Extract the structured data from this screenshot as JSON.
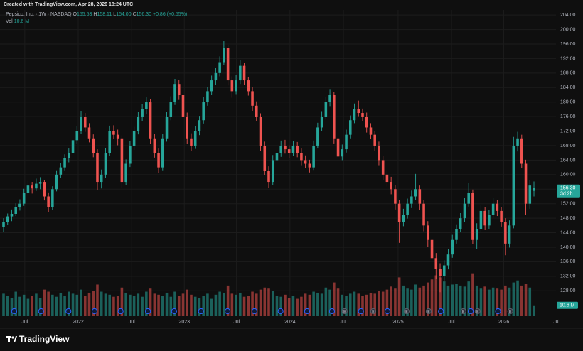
{
  "header": "Created with TradingView.com, Apr 28, 2026 18:24 UTC",
  "brand": "TradingView",
  "chart_data": {
    "type": "candlestick",
    "legend": {
      "symbol": "Pepsico, Inc. · 1W · NASDAQ",
      "fields": [
        {
          "label": "O",
          "value": "155.53"
        },
        {
          "label": "H",
          "value": "158.11"
        },
        {
          "label": "L",
          "value": "154.00"
        },
        {
          "label": "C",
          "value": "156.30"
        }
      ],
      "change": "+0.86 (+0.55%)",
      "volume_label": "Vol",
      "volume_value": "10.6 M"
    },
    "countdown": "3d 2h",
    "up_color": "#26a69a",
    "down_color": "#ef5350",
    "grid": true,
    "xlim": [
      -0.87,
      135.4
    ],
    "xticks": [
      {
        "value": 5.2,
        "label": "Jul"
      },
      {
        "value": 18.3,
        "label": "2022"
      },
      {
        "value": 31.4,
        "label": "Jul"
      },
      {
        "value": 44.3,
        "label": "2023"
      },
      {
        "value": 57.1,
        "label": "Jul"
      },
      {
        "value": 70.2,
        "label": "2024"
      },
      {
        "value": 83.3,
        "label": "Jul"
      },
      {
        "value": 96.7,
        "label": "2025"
      },
      {
        "value": 109.8,
        "label": "Jul"
      },
      {
        "value": 122.6,
        "label": "2026"
      },
      {
        "value": 135.5,
        "label": "Jul"
      }
    ],
    "ylim": [
      121,
      205.4
    ],
    "yticks": [
      {
        "value": 128,
        "label": "128.00"
      },
      {
        "value": 132,
        "label": "132.00"
      },
      {
        "value": 136,
        "label": "136.00"
      },
      {
        "value": 140,
        "label": "140.00"
      },
      {
        "value": 144,
        "label": "144.00"
      },
      {
        "value": 148,
        "label": "148.00"
      },
      {
        "value": 152,
        "label": "152.00"
      },
      {
        "value": 156,
        "label": "156.00"
      },
      {
        "value": 160,
        "label": "160.00"
      },
      {
        "value": 164,
        "label": "164.00"
      },
      {
        "value": 168,
        "label": "168.00"
      },
      {
        "value": 172,
        "label": "172.00"
      },
      {
        "value": 176,
        "label": "176.00"
      },
      {
        "value": 180,
        "label": "180.00"
      },
      {
        "value": 184,
        "label": "184.00"
      },
      {
        "value": 188,
        "label": "188.00"
      },
      {
        "value": 192,
        "label": "192.00"
      },
      {
        "value": 196,
        "label": "196.00"
      },
      {
        "value": 200,
        "label": "200.00"
      },
      {
        "value": 204,
        "label": "204.00"
      }
    ],
    "vlim": [
      0,
      300
    ],
    "ohlc": [
      [
        145.5,
        148.0,
        144.2,
        147.0
      ],
      [
        147.0,
        149.3,
        146.1,
        148.5
      ],
      [
        148.5,
        150.4,
        147.2,
        149.2
      ],
      [
        149.2,
        152.1,
        148.6,
        151.0
      ],
      [
        151.0,
        153.2,
        150.1,
        152.0
      ],
      [
        152.0,
        156.1,
        151.4,
        155.0
      ],
      [
        155.0,
        158.3,
        154.2,
        157.0
      ],
      [
        157.0,
        158.0,
        154.8,
        156.2
      ],
      [
        156.2,
        158.9,
        155.5,
        157.5
      ],
      [
        157.5,
        159.3,
        156.0,
        158.0
      ],
      [
        158.0,
        158.6,
        152.9,
        154.0
      ],
      [
        154.0,
        155.1,
        149.6,
        151.0
      ],
      [
        151.0,
        156.8,
        150.2,
        156.0
      ],
      [
        156.0,
        161.2,
        155.4,
        160.0
      ],
      [
        160.0,
        163.1,
        159.0,
        162.0
      ],
      [
        162.0,
        165.6,
        161.2,
        164.5
      ],
      [
        164.5,
        167.2,
        163.4,
        166.0
      ],
      [
        166.0,
        170.8,
        165.1,
        169.5
      ],
      [
        169.5,
        173.4,
        168.6,
        172.0
      ],
      [
        172.0,
        177.6,
        171.2,
        176.0
      ],
      [
        176.0,
        177.0,
        171.8,
        173.0
      ],
      [
        173.0,
        174.2,
        168.9,
        170.0
      ],
      [
        170.0,
        171.1,
        164.8,
        166.0
      ],
      [
        166.0,
        167.0,
        155.8,
        158.0
      ],
      [
        158.0,
        161.4,
        156.2,
        160.0
      ],
      [
        160.0,
        167.3,
        159.1,
        166.0
      ],
      [
        166.0,
        173.5,
        165.2,
        172.0
      ],
      [
        172.0,
        173.6,
        169.8,
        171.0
      ],
      [
        171.0,
        172.4,
        168.1,
        170.0
      ],
      [
        170.0,
        170.8,
        156.4,
        158.0
      ],
      [
        158.0,
        164.2,
        157.1,
        163.0
      ],
      [
        163.0,
        169.3,
        162.1,
        168.0
      ],
      [
        168.0,
        173.2,
        166.8,
        172.0
      ],
      [
        172.0,
        177.4,
        171.1,
        176.0
      ],
      [
        176.0,
        179.5,
        174.8,
        178.0
      ],
      [
        178.0,
        181.3,
        176.6,
        180.0
      ],
      [
        180.0,
        180.8,
        168.5,
        170.0
      ],
      [
        170.0,
        171.3,
        164.7,
        166.0
      ],
      [
        166.0,
        167.2,
        160.4,
        162.0
      ],
      [
        162.0,
        171.3,
        161.2,
        170.0
      ],
      [
        170.0,
        177.2,
        169.1,
        176.0
      ],
      [
        176.0,
        181.6,
        175.0,
        180.0
      ],
      [
        180.0,
        186.4,
        179.2,
        185.0
      ],
      [
        185.0,
        186.1,
        180.6,
        182.0
      ],
      [
        182.0,
        183.0,
        174.9,
        176.0
      ],
      [
        176.0,
        177.1,
        168.4,
        170.0
      ],
      [
        170.0,
        171.4,
        166.6,
        168.0
      ],
      [
        168.0,
        173.3,
        167.1,
        172.0
      ],
      [
        172.0,
        176.2,
        170.9,
        175.0
      ],
      [
        175.0,
        181.4,
        174.1,
        180.0
      ],
      [
        180.0,
        184.2,
        179.0,
        183.0
      ],
      [
        183.0,
        187.3,
        182.0,
        186.0
      ],
      [
        186.0,
        189.4,
        184.8,
        188.0
      ],
      [
        188.0,
        192.6,
        187.1,
        191.0
      ],
      [
        191.0,
        196.8,
        190.2,
        195.0
      ],
      [
        195.0,
        195.8,
        184.6,
        186.0
      ],
      [
        186.0,
        187.1,
        181.2,
        183.0
      ],
      [
        183.0,
        187.4,
        182.2,
        186.0
      ],
      [
        186.0,
        191.6,
        185.0,
        190.0
      ],
      [
        190.0,
        190.8,
        184.7,
        186.0
      ],
      [
        186.0,
        187.0,
        181.8,
        183.0
      ],
      [
        183.0,
        184.1,
        177.6,
        179.0
      ],
      [
        179.0,
        180.2,
        174.8,
        176.0
      ],
      [
        176.0,
        176.9,
        166.5,
        168.0
      ],
      [
        168.0,
        169.1,
        159.8,
        161.0
      ],
      [
        161.0,
        162.3,
        156.4,
        158.0
      ],
      [
        158.0,
        165.4,
        157.2,
        164.0
      ],
      [
        164.0,
        167.2,
        162.8,
        166.0
      ],
      [
        166.0,
        169.4,
        164.9,
        168.0
      ],
      [
        168.0,
        169.6,
        165.8,
        167.0
      ],
      [
        167.0,
        168.1,
        164.6,
        166.0
      ],
      [
        166.0,
        169.3,
        165.1,
        168.0
      ],
      [
        168.0,
        169.0,
        164.8,
        166.0
      ],
      [
        166.0,
        167.2,
        162.6,
        164.0
      ],
      [
        164.0,
        165.3,
        161.8,
        163.0
      ],
      [
        163.0,
        164.1,
        160.6,
        162.0
      ],
      [
        162.0,
        169.4,
        161.3,
        168.0
      ],
      [
        168.0,
        174.3,
        167.2,
        173.0
      ],
      [
        173.0,
        177.5,
        172.1,
        176.0
      ],
      [
        176.0,
        181.4,
        175.2,
        180.0
      ],
      [
        180.0,
        183.6,
        178.9,
        182.0
      ],
      [
        182.0,
        182.8,
        168.6,
        170.0
      ],
      [
        170.0,
        171.0,
        163.6,
        165.0
      ],
      [
        165.0,
        168.3,
        164.0,
        167.0
      ],
      [
        167.0,
        172.4,
        166.1,
        171.0
      ],
      [
        171.0,
        176.3,
        170.0,
        175.0
      ],
      [
        175.0,
        179.6,
        174.2,
        178.0
      ],
      [
        178.0,
        180.4,
        176.1,
        177.0
      ],
      [
        177.0,
        178.2,
        174.7,
        176.0
      ],
      [
        176.0,
        177.1,
        171.6,
        173.0
      ],
      [
        173.0,
        174.2,
        169.8,
        171.0
      ],
      [
        171.0,
        172.0,
        166.5,
        168.0
      ],
      [
        168.0,
        169.1,
        162.6,
        164.0
      ],
      [
        164.0,
        165.2,
        158.5,
        160.0
      ],
      [
        160.0,
        161.3,
        156.7,
        158.0
      ],
      [
        158.0,
        159.4,
        154.6,
        156.0
      ],
      [
        156.0,
        157.1,
        150.4,
        152.0
      ],
      [
        152.0,
        153.0,
        141.2,
        147.0
      ],
      [
        147.0,
        150.6,
        145.8,
        149.0
      ],
      [
        149.0,
        153.4,
        147.9,
        152.0
      ],
      [
        152.0,
        155.6,
        150.8,
        154.0
      ],
      [
        154.0,
        160.2,
        153.0,
        156.0
      ],
      [
        156.0,
        157.0,
        150.3,
        152.0
      ],
      [
        152.0,
        153.1,
        144.4,
        146.0
      ],
      [
        146.0,
        147.2,
        140.1,
        142.0
      ],
      [
        142.0,
        143.0,
        133.6,
        137.0
      ],
      [
        137.0,
        138.4,
        131.2,
        134.0
      ],
      [
        134.0,
        135.6,
        127.6,
        132.0
      ],
      [
        132.0,
        136.4,
        130.8,
        135.0
      ],
      [
        135.0,
        139.6,
        133.9,
        138.0
      ],
      [
        138.0,
        143.4,
        137.1,
        142.0
      ],
      [
        142.0,
        146.3,
        141.0,
        145.0
      ],
      [
        145.0,
        149.4,
        144.1,
        148.0
      ],
      [
        148.0,
        153.6,
        147.0,
        152.0
      ],
      [
        152.0,
        157.8,
        151.2,
        155.0
      ],
      [
        155.0,
        155.9,
        140.8,
        142.0
      ],
      [
        142.0,
        146.6,
        139.6,
        145.0
      ],
      [
        145.0,
        151.6,
        144.1,
        150.0
      ],
      [
        150.0,
        151.0,
        144.7,
        146.0
      ],
      [
        146.0,
        150.3,
        145.0,
        149.0
      ],
      [
        149.0,
        153.6,
        148.1,
        152.0
      ],
      [
        152.0,
        153.0,
        148.6,
        150.0
      ],
      [
        150.0,
        151.1,
        145.7,
        147.0
      ],
      [
        147.0,
        148.0,
        137.8,
        141.0
      ],
      [
        141.0,
        147.4,
        139.9,
        146.0
      ],
      [
        146.0,
        170.4,
        145.2,
        168.0
      ],
      [
        168.0,
        171.8,
        166.4,
        170.0
      ],
      [
        170.0,
        171.0,
        161.8,
        163.0
      ],
      [
        163.0,
        164.1,
        148.8,
        152.0
      ],
      [
        152.0,
        158.4,
        150.6,
        157.0
      ],
      [
        155.53,
        158.11,
        154.0,
        156.3
      ]
    ],
    "volume": [
      22,
      20,
      18,
      24,
      19,
      21,
      17,
      20,
      22,
      18,
      26,
      24,
      21,
      19,
      23,
      20,
      24,
      22,
      21,
      26,
      20,
      23,
      25,
      31,
      24,
      22,
      21,
      19,
      20,
      28,
      23,
      21,
      20,
      22,
      19,
      24,
      27,
      22,
      21,
      20,
      23,
      19,
      24,
      20,
      22,
      26,
      21,
      19,
      18,
      20,
      22,
      17,
      21,
      24,
      23,
      30,
      22,
      21,
      23,
      19,
      20,
      24,
      22,
      26,
      28,
      27,
      25,
      20,
      19,
      21,
      18,
      20,
      17,
      19,
      22,
      21,
      24,
      23,
      22,
      28,
      26,
      33,
      27,
      21,
      20,
      22,
      24,
      22,
      20,
      21,
      23,
      22,
      25,
      24,
      26,
      29,
      27,
      38,
      30,
      27,
      26,
      31,
      28,
      30,
      33,
      36,
      40,
      38,
      34,
      30,
      31,
      32,
      30,
      29,
      34,
      42,
      30,
      27,
      29,
      26,
      28,
      27,
      26,
      30,
      28,
      33,
      35,
      30,
      32,
      28,
      10.6
    ],
    "events": {
      "dividend": [
        2.6,
        9.2,
        15.9,
        22.3,
        28.7,
        35.4,
        41.8,
        48.4,
        54.9,
        61.5,
        67.9,
        74.4,
        80.5,
        87.6,
        94.1,
        107.2,
        114.5,
        121.2
      ],
      "earnings": {
        "label": "E",
        "at": [
          83.6,
          90.6,
          98.8,
          104.2,
          112.7,
          116.2,
          124.2
        ]
      }
    }
  }
}
